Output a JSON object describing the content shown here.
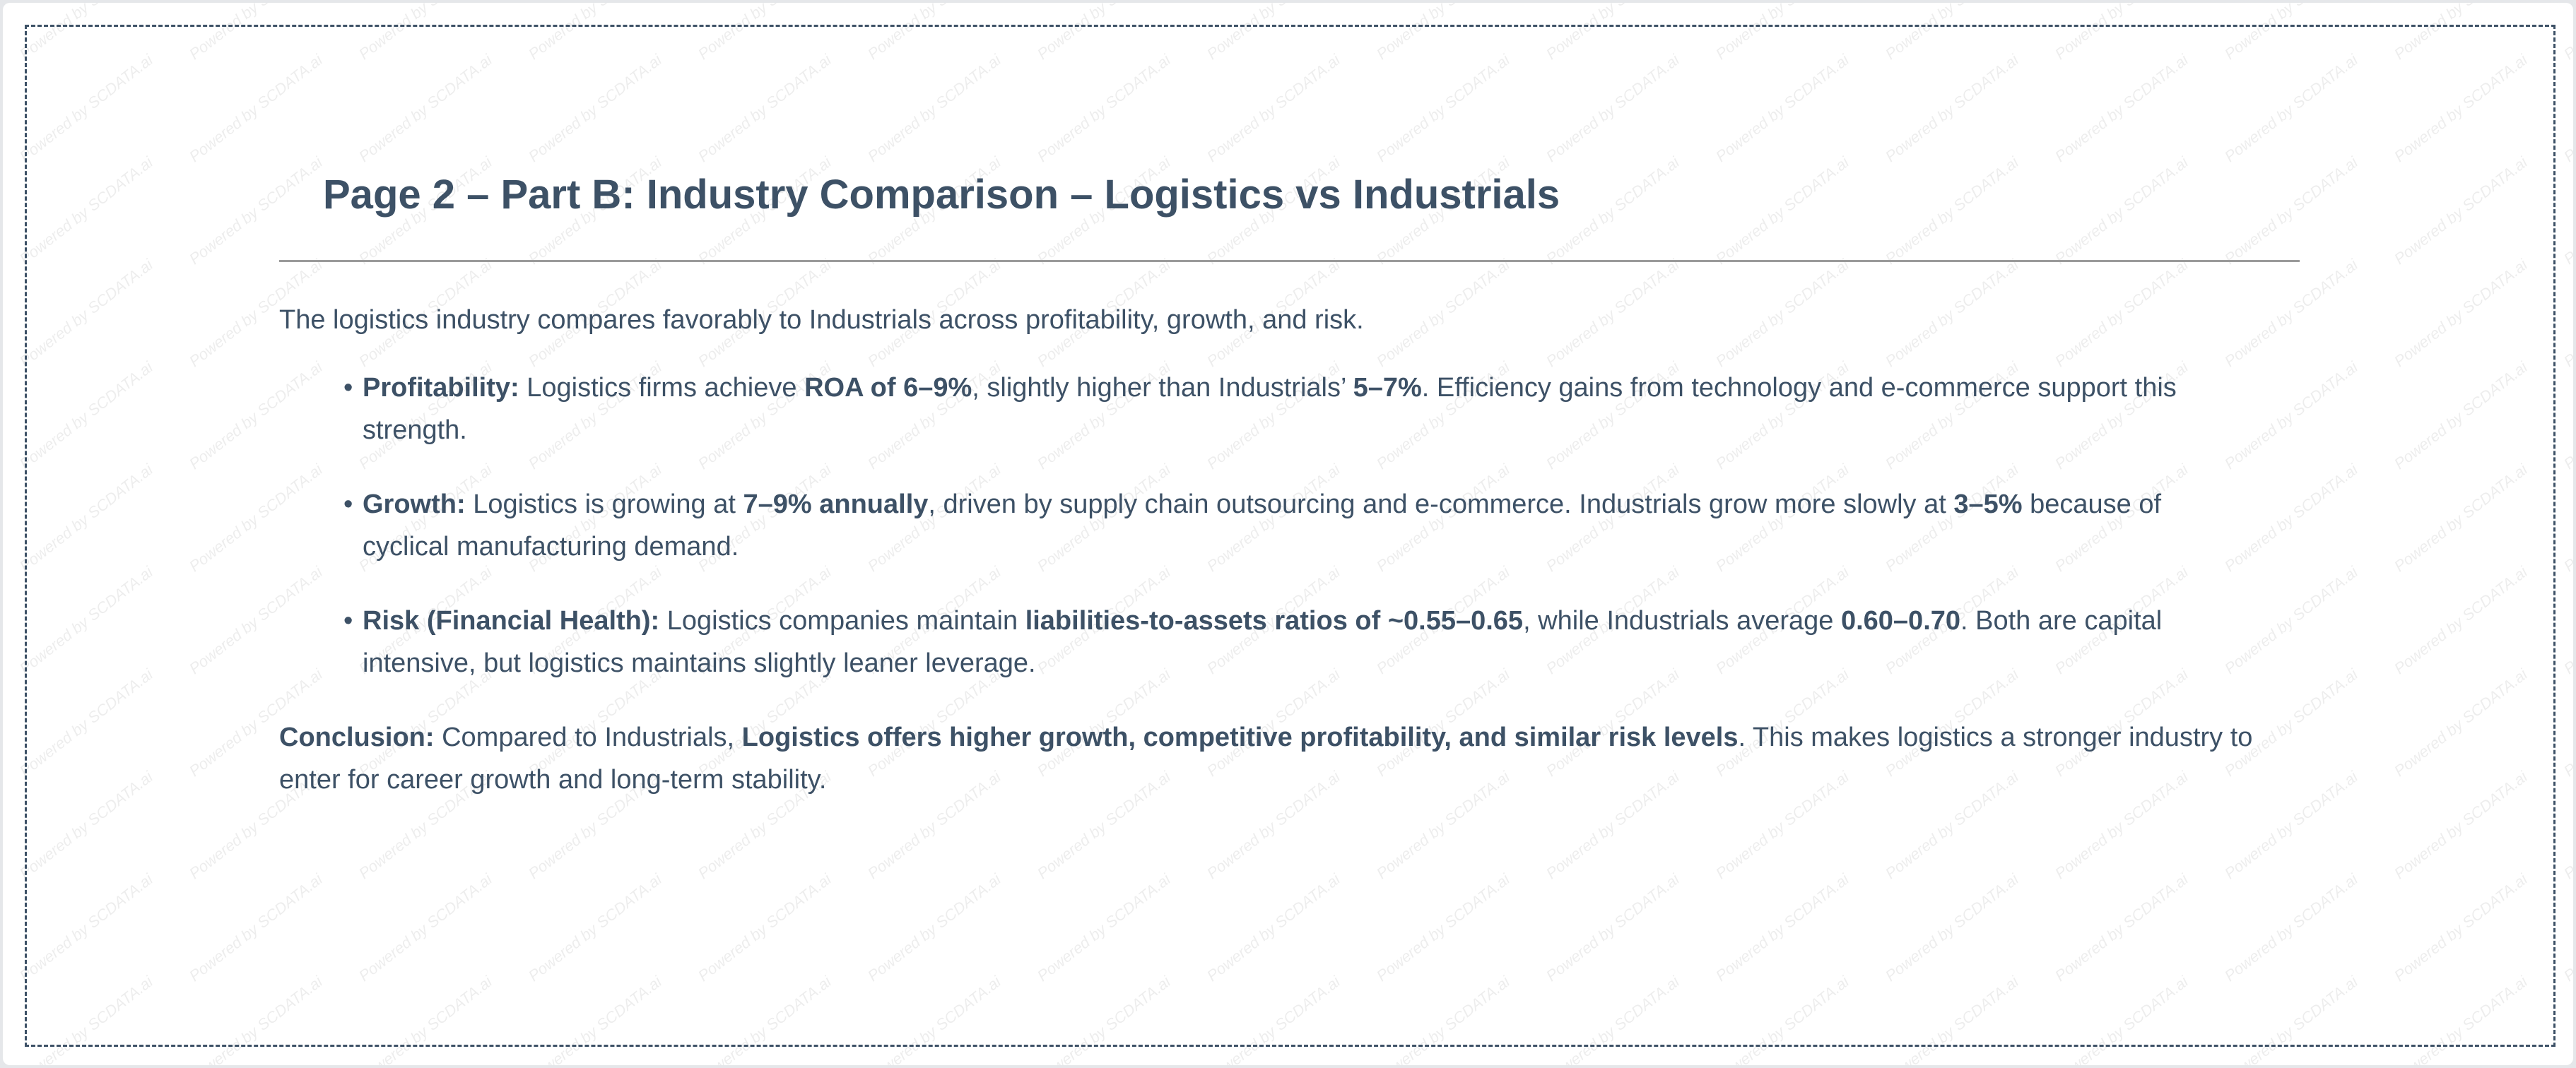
{
  "watermark": "Powered by SCDATA.ai",
  "title": "Page 2 – Part B: Industry Comparison – Logistics vs Industrials",
  "intro": "The logistics industry compares favorably to Industrials across profitability, growth, and risk.",
  "bullets": [
    {
      "label": "Profitability:",
      "t1": " Logistics firms achieve ",
      "b1": "ROA of 6–9%",
      "t2": ", slightly higher than Industrials’ ",
      "b2": "5–7%",
      "t3": ". Efficiency gains from technology and e-commerce support this strength."
    },
    {
      "label": "Growth:",
      "t1": " Logistics is growing at ",
      "b1": "7–9% annually",
      "t2": ", driven by supply chain outsourcing and e-commerce. Industrials grow more slowly at ",
      "b2": "3–5%",
      "t3": " because of cyclical manufacturing demand."
    },
    {
      "label": "Risk (Financial Health):",
      "t1": " Logistics companies maintain ",
      "b1": "liabilities-to-assets ratios of ~0.55–0.65",
      "t2": ", while Industrials average ",
      "b2": "0.60–0.70",
      "t3": ". Both are capital intensive, but logistics maintains slightly leaner leverage."
    }
  ],
  "conclusion": {
    "label": "Conclusion:",
    "t1": " Compared to Industrials, ",
    "b1": "Logistics offers higher growth, competitive profitability, and similar risk levels",
    "t2": ". This makes logistics a stronger industry to enter for career growth and long-term stability."
  }
}
